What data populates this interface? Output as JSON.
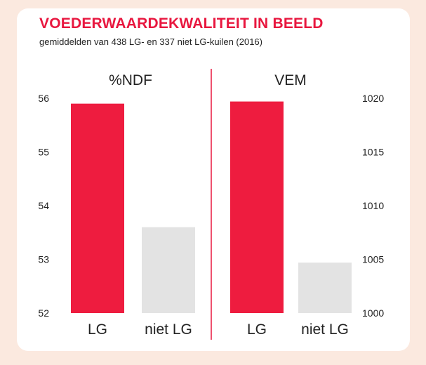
{
  "chart_data": [
    {
      "type": "bar",
      "title": "VOEDERWAARDEKWALITEIT IN BEELD",
      "subtitle": "gemiddelden van 438 LG- en 337 niet LG-kuilen (2016)",
      "panel_label": "%NDF",
      "categories": [
        "LG",
        "niet LG"
      ],
      "values": [
        55.9,
        53.6
      ],
      "colors": [
        "#ee1c3f",
        "#e3e3e3"
      ],
      "ylim": [
        52,
        56
      ],
      "yticks": [
        "52",
        "53",
        "54",
        "55",
        "56"
      ],
      "y_axis_side": "left",
      "grid": false
    },
    {
      "type": "bar",
      "panel_label": "VEM",
      "categories": [
        "LG",
        "niet LG"
      ],
      "values": [
        1019.7,
        1004.7
      ],
      "colors": [
        "#ee1c3f",
        "#e3e3e3"
      ],
      "ylim": [
        1000,
        1020
      ],
      "yticks": [
        "1000",
        "1005",
        "1010",
        "1015",
        "1020"
      ],
      "y_axis_side": "right",
      "grid": false
    }
  ]
}
